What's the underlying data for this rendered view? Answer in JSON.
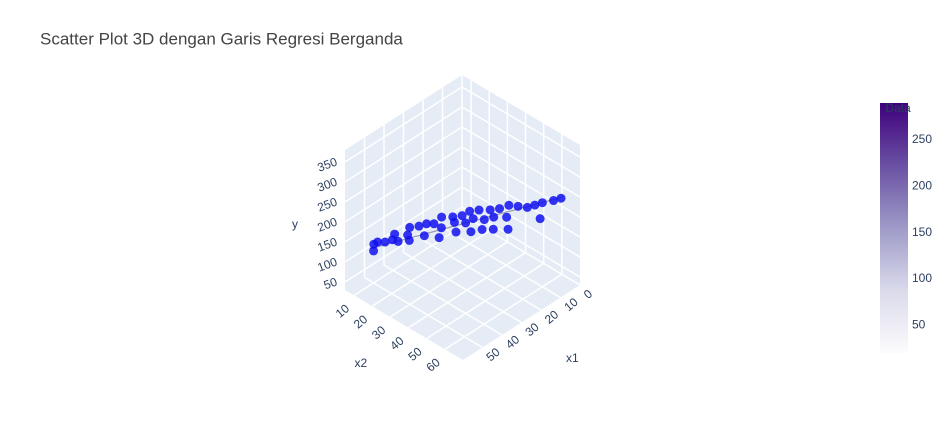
{
  "chart_data": {
    "type": "scatter3d",
    "title": "Scatter Plot 3D dengan Garis Regresi Berganda",
    "x1_title": "x1",
    "x2_title": "x2",
    "y_title": "y",
    "x1lim": [
      0,
      60
    ],
    "x1ticks": [
      0,
      10,
      20,
      30,
      40,
      50
    ],
    "x2lim": [
      5,
      70
    ],
    "x2ticks": [
      10,
      20,
      30,
      40,
      50,
      60
    ],
    "ylim": [
      30,
      380
    ],
    "yticks": [
      50,
      100,
      150,
      200,
      250,
      300,
      350
    ],
    "grid": true,
    "marker_color": "#1010f0",
    "line_color": "#9a9ab0",
    "points": {
      "x1": [
        48,
        50,
        46,
        47,
        44,
        42,
        43,
        40,
        38,
        41,
        36,
        34,
        37,
        33,
        30,
        32,
        35,
        28,
        29,
        26,
        31,
        27,
        24,
        25,
        22,
        28,
        23,
        20,
        26,
        21,
        18,
        24,
        19,
        16,
        15,
        22,
        14,
        12,
        10,
        8,
        6,
        13
      ],
      "x2": [
        8,
        10,
        12,
        9,
        14,
        13,
        16,
        18,
        17,
        20,
        20,
        22,
        24,
        25,
        26,
        28,
        30,
        30,
        32,
        33,
        35,
        36,
        35,
        38,
        38,
        40,
        42,
        42,
        44,
        45,
        45,
        48,
        50,
        48,
        52,
        54,
        56,
        58,
        60,
        64,
        66,
        62
      ],
      "y": [
        115,
        110,
        125,
        120,
        130,
        135,
        128,
        140,
        150,
        135,
        155,
        160,
        145,
        165,
        175,
        160,
        150,
        180,
        175,
        185,
        165,
        178,
        195,
        188,
        200,
        170,
        190,
        205,
        180,
        198,
        210,
        185,
        205,
        220,
        225,
        195,
        230,
        235,
        240,
        250,
        255,
        215
      ]
    },
    "regression": {
      "x1": [
        50,
        5
      ],
      "x2": [
        8,
        66
      ],
      "y": [
        110,
        255
      ]
    },
    "colorbar": {
      "title": "Data",
      "range": [
        20,
        290
      ],
      "ticks": [
        50,
        100,
        150,
        200,
        250
      ],
      "colorscale": [
        "#fcfbfd",
        "#dadaeb",
        "#9e9ac8",
        "#6a51a3",
        "#3f007d"
      ]
    }
  }
}
